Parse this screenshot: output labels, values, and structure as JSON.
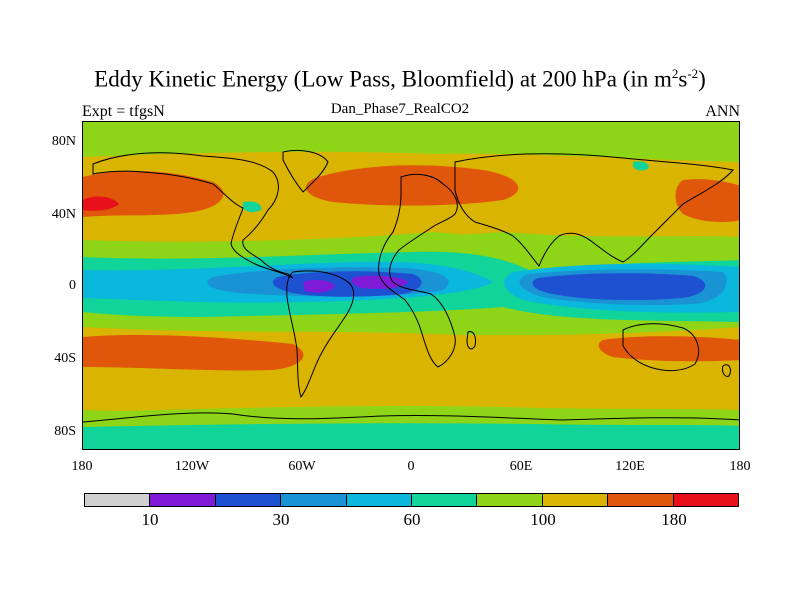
{
  "title": {
    "main_prefix": "Eddy Kinetic Energy (Low Pass, Bloomfield) at 200 hPa (in m",
    "sup1": "2",
    "mid": "s",
    "sup2": "-2",
    "suffix": ")"
  },
  "subtitle": "Dan_Phase7_RealCO2",
  "left_label": "Expt = tfgsN",
  "right_label": "ANN",
  "y_ticks": [
    "80N",
    "40N",
    "0",
    "40S",
    "80S"
  ],
  "x_ticks": [
    "180",
    "120W",
    "60W",
    "0",
    "60E",
    "120E",
    "180"
  ],
  "colorbar": {
    "colors": [
      "#d0d0d0",
      "#7f1bd6",
      "#1e50d2",
      "#1a93d4",
      "#0ab7dd",
      "#10d49a",
      "#8ed417",
      "#d9b400",
      "#e0560a",
      "#e8101a"
    ],
    "labels": [
      "10",
      "30",
      "60",
      "100",
      "180"
    ]
  },
  "chart_data": {
    "type": "map",
    "title": "Eddy Kinetic Energy (Low Pass, Bloomfield) at 200 hPa (in m2s-2)",
    "subtitle": "Dan_Phase7_RealCO2",
    "left_string": "Expt = tfgsN",
    "right_string": "ANN",
    "xlim": [
      -180,
      180
    ],
    "ylim": [
      -90,
      90
    ],
    "colorbar_levels_labeled": [
      10,
      30,
      60,
      100,
      180
    ]
  }
}
